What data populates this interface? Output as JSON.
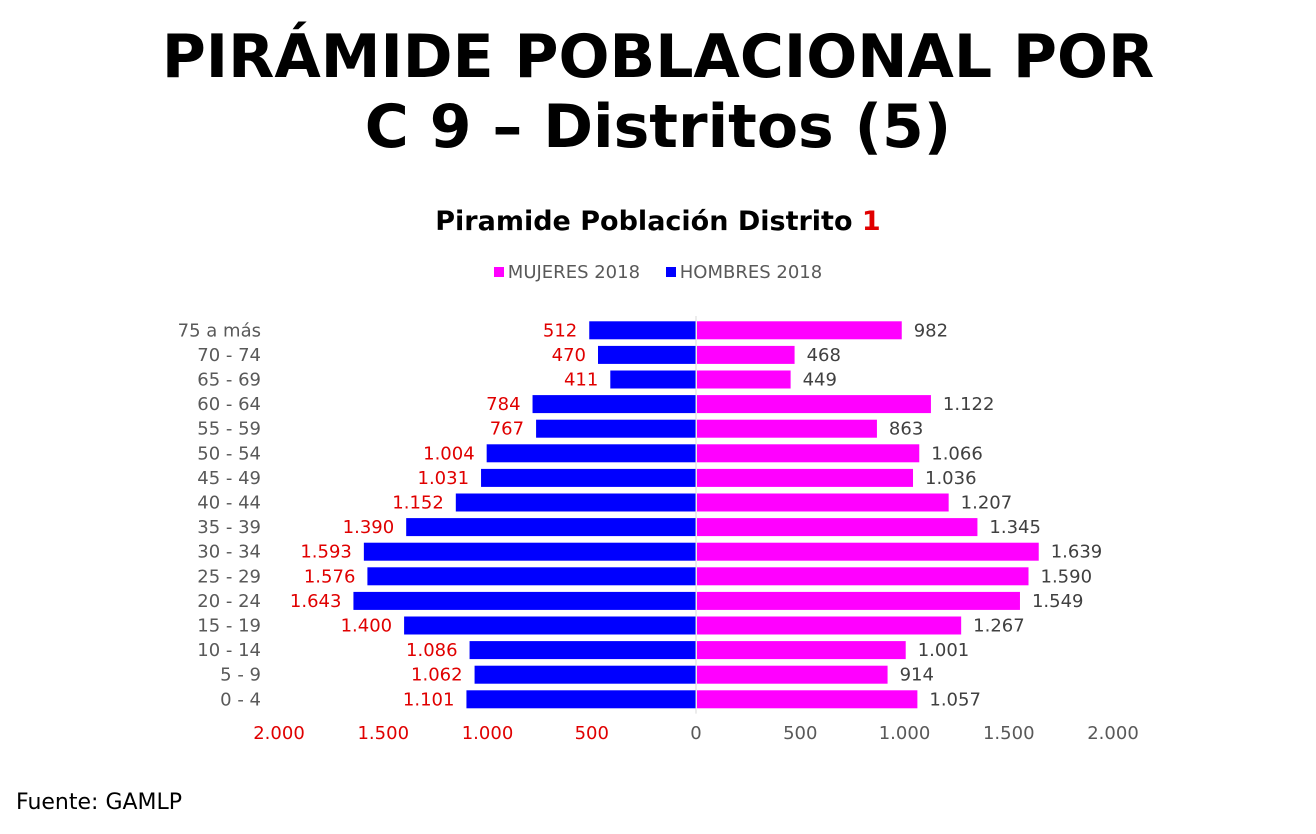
{
  "slide": {
    "title_line1": "PIRÁMIDE POBLACIONAL POR",
    "title_line2": "C 9 – Distritos (5)",
    "source": "Fuente: GAMLP"
  },
  "colors": {
    "mujeres": "#ff00ff",
    "hombres": "#0000ff",
    "hombres_label": "#e00000",
    "mujeres_label": "#404040",
    "axis_text": "#595959"
  },
  "chart_data": {
    "type": "bar",
    "orientation": "horizontal-pyramid",
    "title": "Piramide Población Distrito",
    "title_highlight": "1",
    "categories": [
      "75 a más",
      "70 - 74",
      "65 - 69",
      "60 - 64",
      "55 - 59",
      "50 - 54",
      "45 - 49",
      "40 - 44",
      "35 - 39",
      "30 - 34",
      "25 - 29",
      "20 - 24",
      "15 - 19",
      "10 - 14",
      "5 - 9",
      "0 - 4"
    ],
    "series": [
      {
        "name": "MUJERES 2018",
        "side": "right",
        "values": [
          982,
          468,
          449,
          1122,
          863,
          1066,
          1036,
          1207,
          1345,
          1639,
          1590,
          1549,
          1267,
          1001,
          914,
          1057
        ],
        "labels": [
          "982",
          "468",
          "449",
          "1.122",
          "863",
          "1.066",
          "1.036",
          "1.207",
          "1.345",
          "1.639",
          "1.590",
          "1.549",
          "1.267",
          "1.001",
          "914",
          "1.057"
        ]
      },
      {
        "name": "HOMBRES 2018",
        "side": "left",
        "values": [
          512,
          470,
          411,
          784,
          767,
          1004,
          1031,
          1152,
          1390,
          1593,
          1576,
          1643,
          1400,
          1086,
          1062,
          1101
        ],
        "labels": [
          "512",
          "470",
          "411",
          "784",
          "767",
          "1.004",
          "1.031",
          "1.152",
          "1.390",
          "1.593",
          "1.576",
          "1.643",
          "1.400",
          "1.086",
          "1.062",
          "1.101"
        ]
      }
    ],
    "xlim": [
      -2000,
      2000
    ],
    "xticks": [
      -2000,
      -1500,
      -1000,
      -500,
      0,
      500,
      1000,
      1500,
      2000
    ],
    "xtick_labels": [
      "2.000",
      "1.500",
      "1.000",
      "500",
      "0",
      "500",
      "1.000",
      "1.500",
      "2.000"
    ],
    "legend": "top",
    "grid": false
  }
}
